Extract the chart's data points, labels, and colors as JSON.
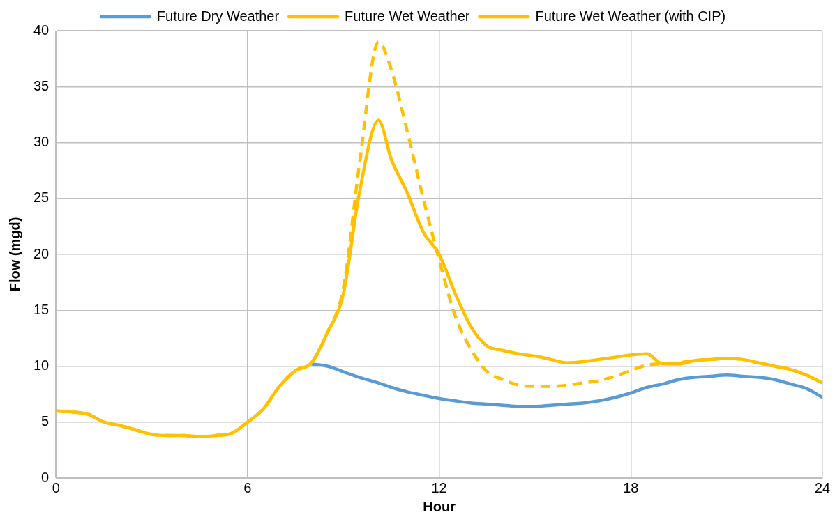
{
  "chart_data": {
    "type": "line",
    "xlabel": "Hour",
    "ylabel": "Flow (mgd)",
    "x": [
      0,
      0.5,
      1,
      1.5,
      2,
      2.5,
      3,
      3.5,
      4,
      4.5,
      5,
      5.5,
      6,
      6.5,
      7,
      7.5,
      8,
      8.5,
      9,
      9.5,
      10.1,
      10.5,
      11,
      11.5,
      12,
      12.5,
      13,
      13.5,
      14,
      14.5,
      15,
      15.5,
      16,
      16.5,
      17,
      17.5,
      18,
      18.5,
      19,
      19.5,
      20,
      20.5,
      21,
      21.5,
      22,
      22.5,
      23,
      23.5,
      24
    ],
    "xlim": [
      0,
      24
    ],
    "xticks": [
      0,
      6,
      12,
      18,
      24
    ],
    "ylim": [
      0,
      40
    ],
    "yticks": [
      0,
      5,
      10,
      15,
      20,
      25,
      30,
      35,
      40
    ],
    "grid": true,
    "legend": "top",
    "marker": "none",
    "line_style": "solid",
    "series": [
      {
        "name": "Future Dry Weather",
        "color": "#5b9bd5",
        "values": [
          null,
          null,
          null,
          null,
          null,
          null,
          null,
          null,
          null,
          null,
          null,
          null,
          null,
          null,
          null,
          null,
          10.2,
          10.0,
          9.5,
          9.0,
          8.5,
          8.1,
          7.7,
          7.4,
          7.1,
          6.9,
          6.7,
          6.6,
          6.5,
          6.4,
          6.4,
          6.5,
          6.6,
          6.7,
          6.9,
          7.2,
          7.6,
          8.1,
          8.4,
          8.8,
          9.0,
          9.1,
          9.2,
          9.1,
          9.0,
          8.8,
          8.4,
          8.0,
          7.2
        ]
      },
      {
        "name": "Future Wet Weather",
        "color": "#ffc000",
        "values": [
          6,
          5.9,
          5.7,
          5.0,
          4.7,
          4.3,
          3.9,
          3.8,
          3.8,
          3.7,
          3.8,
          4.0,
          5.0,
          6.2,
          8.2,
          9.6,
          10.3,
          13.0,
          16.5,
          25.5,
          32.0,
          28.5,
          25.5,
          22.0,
          20.0,
          16.5,
          13.5,
          11.8,
          11.4,
          11.1,
          10.9,
          10.6,
          10.3,
          10.4,
          10.6,
          10.8,
          11.0,
          11.1,
          10.2,
          10.2,
          10.5,
          10.6,
          10.7,
          10.6,
          10.3,
          10.0,
          9.7,
          9.2,
          8.5
        ]
      },
      {
        "name": "Future Wet Weather (with CIP)",
        "color": "#ffc000",
        "line_style": "dashed",
        "values": [
          6,
          5.9,
          5.7,
          5.0,
          4.7,
          4.3,
          3.9,
          3.8,
          3.8,
          3.7,
          3.8,
          4.0,
          5.0,
          6.2,
          8.2,
          9.6,
          10.3,
          13.0,
          17.0,
          28.0,
          39.0,
          36.5,
          31.0,
          25.0,
          19.5,
          14.5,
          11.5,
          9.5,
          8.8,
          8.3,
          8.2,
          8.2,
          8.3,
          8.5,
          8.7,
          9.1,
          9.6,
          10.1,
          10.2,
          10.3,
          10.5,
          10.6,
          10.7,
          10.6,
          10.3,
          10.0,
          9.7,
          9.2,
          8.5
        ]
      }
    ]
  }
}
